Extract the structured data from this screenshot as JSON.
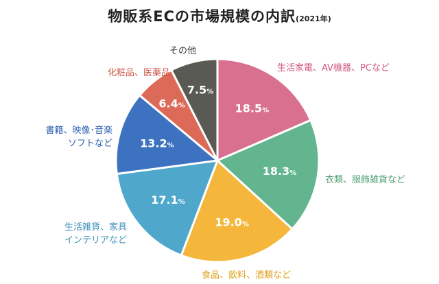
{
  "chart_data": {
    "type": "pie",
    "title": "物販系ECの市場規模の内訳",
    "subtitle": "(2021年)",
    "unit": "%",
    "slices": [
      {
        "label": [
          "生活家電、AV機器、PCなど"
        ],
        "value": 18.5,
        "value_label": "18.5",
        "color": "#d9708f"
      },
      {
        "label": [
          "衣類、服飾雑貨など"
        ],
        "value": 18.3,
        "value_label": "18.3",
        "color": "#63b58f"
      },
      {
        "label": [
          "食品、飲料、酒類など"
        ],
        "value": 19.0,
        "value_label": "19.0",
        "color": "#f4b73c"
      },
      {
        "label": [
          "生活雑貨、家具",
          "インテリアなど"
        ],
        "value": 17.1,
        "value_label": "17.1",
        "color": "#4fa7cb"
      },
      {
        "label": [
          "書籍、映像･音楽",
          "ソフトなど"
        ],
        "value": 13.2,
        "value_label": "13.2",
        "color": "#3d72c0"
      },
      {
        "label": [
          "化粧品、医薬品"
        ],
        "value": 6.4,
        "value_label": "6.4",
        "color": "#dc6a58"
      },
      {
        "label": [
          "その他"
        ],
        "value": 7.5,
        "value_label": "7.5",
        "color": "#5a5a55"
      }
    ],
    "label_colors": [
      "#d0587e",
      "#4f9f73",
      "#e0a11a",
      "#3d90b8",
      "#2f62b3",
      "#cc5444",
      "#333333"
    ]
  }
}
